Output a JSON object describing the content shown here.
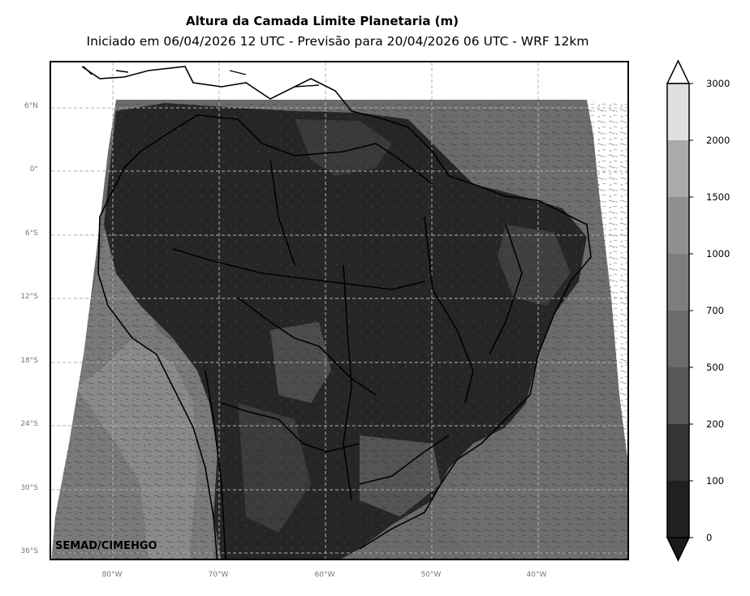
{
  "title": "Altura da Camada Limite Planetaria (m)",
  "subtitle": "Iniciado em 06/04/2026 12 UTC - Previsão para 20/04/2026 06 UTC - WRF 12km",
  "watermark": "SEMAD/CIMEHGO",
  "lat_labels": [
    "6°N",
    "0°",
    "6°S",
    "12°S",
    "18°S",
    "24°S",
    "30°S",
    "36°S"
  ],
  "lon_labels": [
    "80°W",
    "70°W",
    "60°W",
    "50°W",
    "40°W"
  ],
  "colorbar": {
    "levels": [
      "0",
      "100",
      "200",
      "500",
      "700",
      "1000",
      "1500",
      "2000",
      "3000"
    ],
    "colors": [
      "#1a1a1a",
      "#202020",
      "#343434",
      "#575757",
      "#6b6b6b",
      "#7e7e7e",
      "#909090",
      "#aaaaaa",
      "#e0e0e0"
    ],
    "under_color": "#1a1a1a",
    "over_color": "#ffffff"
  }
}
